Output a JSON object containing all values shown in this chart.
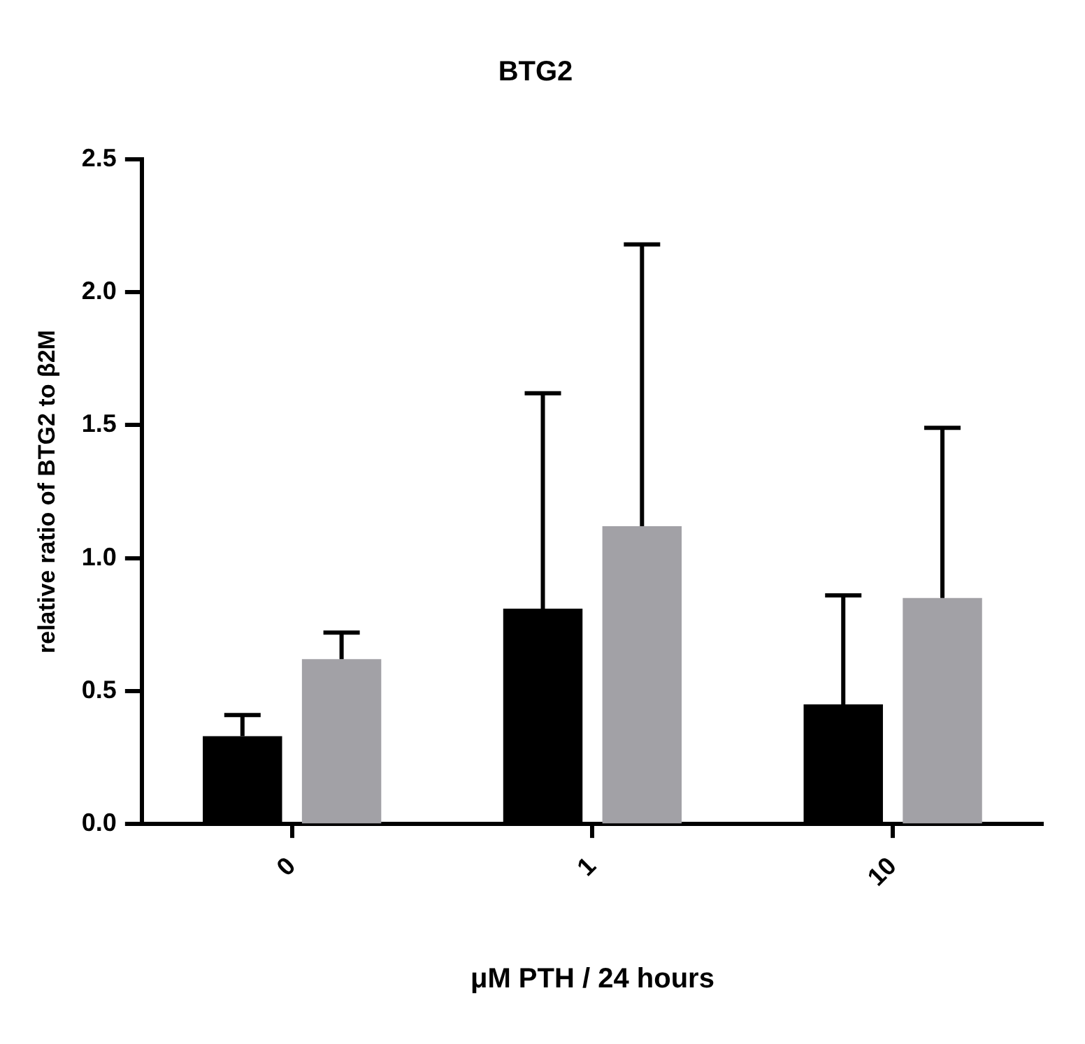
{
  "chart_data": {
    "type": "bar",
    "title": "BTG2",
    "xlabel": "μM PTH / 24 hours",
    "ylabel": "relative ratio of BTG2 to β2M",
    "categories": [
      "0",
      "1",
      "10"
    ],
    "series": [
      {
        "color": "#000000",
        "values": [
          0.33,
          0.81,
          0.45
        ],
        "errors": [
          [
            0.33,
            0.41
          ],
          [
            0.81,
            1.62
          ],
          [
            0.45,
            0.86
          ]
        ]
      },
      {
        "color": "#a2a1a6",
        "values": [
          0.62,
          1.12,
          0.85
        ],
        "errors": [
          [
            0.62,
            0.72
          ],
          [
            1.12,
            2.18
          ],
          [
            0.85,
            1.49
          ]
        ]
      }
    ],
    "ylim": [
      0,
      2.5
    ],
    "yticks": [
      {
        "value": 0,
        "label": "0.0"
      },
      0.5,
      {
        "value": 1,
        "label": "1.0"
      },
      1.5,
      {
        "value": 2,
        "label": "2.0"
      },
      2.5
    ],
    "grid": false,
    "legend": false
  }
}
